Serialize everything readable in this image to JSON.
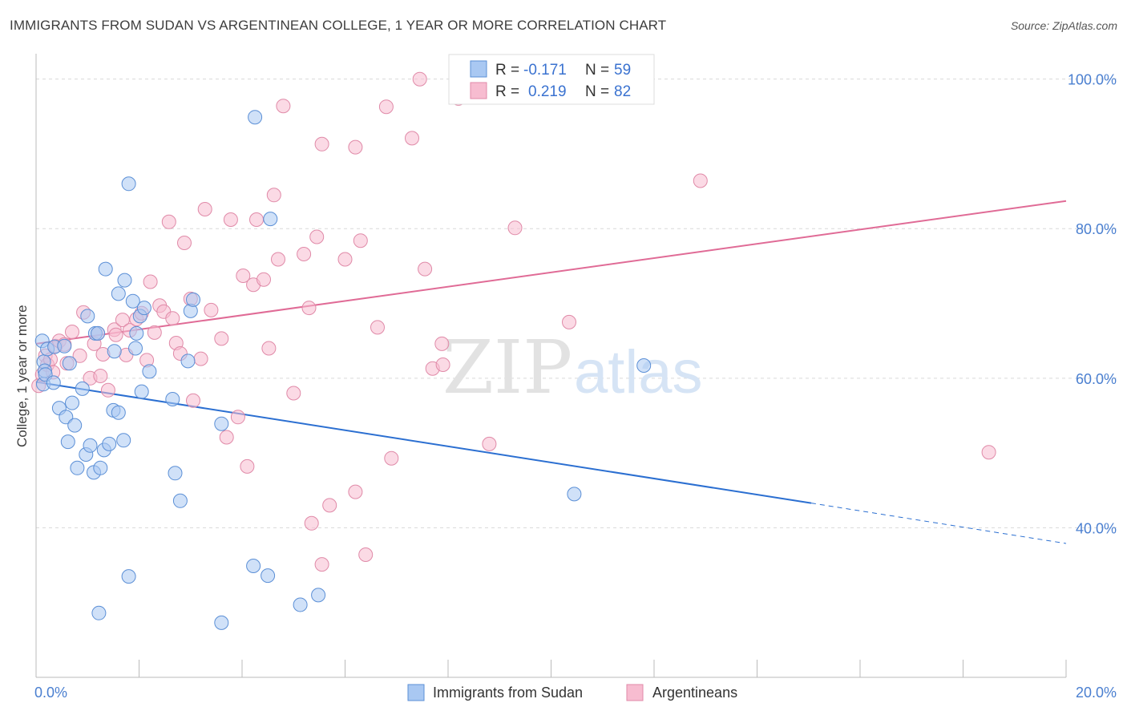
{
  "title": "IMMIGRANTS FROM SUDAN VS ARGENTINEAN COLLEGE, 1 YEAR OR MORE CORRELATION CHART",
  "source": "Source: ZipAtlas.com",
  "watermark": {
    "zip": "ZIP",
    "atlas": "atlas"
  },
  "colors": {
    "blue_fill": "#a9c8f2",
    "blue_stroke": "#5b8fd6",
    "blue_line": "#2b6fd1",
    "pink_fill": "#f7bcd0",
    "pink_stroke": "#e08aa8",
    "pink_line": "#e06b96",
    "tick_text": "#4a7fd0",
    "grid": "#d9d9d9"
  },
  "legend": {
    "r_label": "R =",
    "n_label": "N =",
    "rows": [
      {
        "r": "-0.171",
        "n": "59",
        "color": "blue"
      },
      {
        "r": "0.219",
        "n": "82",
        "color": "pink"
      }
    ]
  },
  "bottom_legend": [
    "Immigrants from Sudan",
    "Argentineans"
  ],
  "chart_data": {
    "type": "scatter",
    "title": "IMMIGRANTS FROM SUDAN VS ARGENTINEAN COLLEGE, 1 YEAR OR MORE CORRELATION CHART",
    "xlabel": "",
    "ylabel": "College, 1 year or more",
    "xlim": [
      0,
      20
    ],
    "ylim": [
      20,
      102
    ],
    "x_tick_labels": [
      "0.0%",
      "20.0%"
    ],
    "y_ticks": [
      40,
      60,
      80,
      100
    ],
    "y_tick_labels": [
      "40.0%",
      "60.0%",
      "80.0%",
      "100.0%"
    ],
    "grid": true,
    "series": [
      {
        "name": "Immigrants from Sudan",
        "color": "blue",
        "r": -0.171,
        "n": 59,
        "trend": {
          "x1": 0.0,
          "y1": 59.5,
          "x2": 15.05,
          "y2": 43.3,
          "dash_to_x": 20.0,
          "dash_to_y": 37.9
        },
        "points": [
          [
            0.12,
            65.0
          ],
          [
            0.15,
            62.2
          ],
          [
            0.17,
            61.0
          ],
          [
            0.14,
            59.2
          ],
          [
            0.18,
            60.5
          ],
          [
            0.22,
            63.9
          ],
          [
            0.36,
            64.2
          ],
          [
            0.34,
            59.4
          ],
          [
            0.55,
            64.3
          ],
          [
            0.65,
            62.0
          ],
          [
            0.45,
            56.0
          ],
          [
            0.7,
            56.7
          ],
          [
            0.58,
            54.8
          ],
          [
            0.75,
            53.7
          ],
          [
            0.62,
            51.5
          ],
          [
            0.9,
            58.6
          ],
          [
            0.8,
            48.0
          ],
          [
            0.97,
            49.8
          ],
          [
            1.05,
            51.0
          ],
          [
            1.12,
            47.4
          ],
          [
            1.25,
            48.0
          ],
          [
            1.32,
            50.4
          ],
          [
            1.42,
            51.2
          ],
          [
            1.5,
            55.7
          ],
          [
            1.6,
            55.4
          ],
          [
            1.7,
            51.7
          ],
          [
            1.0,
            68.3
          ],
          [
            1.15,
            66.0
          ],
          [
            1.2,
            66.0
          ],
          [
            1.35,
            74.6
          ],
          [
            1.52,
            63.6
          ],
          [
            1.6,
            71.3
          ],
          [
            1.72,
            73.1
          ],
          [
            1.8,
            86.0
          ],
          [
            1.88,
            70.3
          ],
          [
            1.93,
            64.0
          ],
          [
            1.95,
            66.0
          ],
          [
            2.02,
            68.3
          ],
          [
            2.1,
            69.4
          ],
          [
            2.05,
            58.2
          ],
          [
            2.2,
            60.9
          ],
          [
            2.65,
            57.2
          ],
          [
            2.7,
            47.3
          ],
          [
            2.8,
            43.6
          ],
          [
            2.95,
            62.3
          ],
          [
            3.0,
            69.0
          ],
          [
            3.05,
            70.5
          ],
          [
            3.6,
            53.9
          ],
          [
            1.8,
            33.5
          ],
          [
            1.22,
            28.6
          ],
          [
            3.6,
            27.3
          ],
          [
            4.25,
            94.9
          ],
          [
            4.55,
            81.3
          ],
          [
            4.22,
            34.9
          ],
          [
            4.5,
            33.6
          ],
          [
            5.13,
            29.7
          ],
          [
            5.48,
            31.0
          ],
          [
            10.45,
            44.5
          ],
          [
            11.8,
            61.7
          ]
        ]
      },
      {
        "name": "Argentineans",
        "color": "pink",
        "r": 0.219,
        "n": 82,
        "trend": {
          "x1": 0.0,
          "y1": 64.6,
          "x2": 20.0,
          "y2": 83.7
        },
        "points": [
          [
            0.05,
            59.0
          ],
          [
            0.12,
            60.5
          ],
          [
            0.18,
            63.0
          ],
          [
            0.22,
            61.8
          ],
          [
            0.28,
            62.5
          ],
          [
            0.33,
            60.8
          ],
          [
            0.38,
            64.3
          ],
          [
            0.45,
            65.0
          ],
          [
            0.55,
            64.5
          ],
          [
            0.6,
            62.0
          ],
          [
            0.7,
            66.2
          ],
          [
            0.85,
            63.0
          ],
          [
            0.92,
            68.8
          ],
          [
            1.05,
            60.0
          ],
          [
            1.13,
            64.6
          ],
          [
            1.2,
            66.0
          ],
          [
            1.25,
            60.3
          ],
          [
            1.3,
            63.2
          ],
          [
            1.4,
            58.4
          ],
          [
            1.52,
            66.5
          ],
          [
            1.55,
            65.8
          ],
          [
            1.68,
            67.8
          ],
          [
            1.75,
            63.1
          ],
          [
            1.82,
            66.4
          ],
          [
            1.95,
            67.9
          ],
          [
            2.05,
            68.7
          ],
          [
            2.15,
            62.4
          ],
          [
            2.22,
            72.9
          ],
          [
            2.3,
            66.1
          ],
          [
            2.4,
            69.7
          ],
          [
            2.48,
            68.9
          ],
          [
            2.58,
            80.9
          ],
          [
            2.65,
            68.0
          ],
          [
            2.72,
            64.7
          ],
          [
            2.8,
            63.3
          ],
          [
            2.88,
            78.1
          ],
          [
            3.0,
            70.6
          ],
          [
            3.05,
            57.0
          ],
          [
            3.2,
            62.6
          ],
          [
            3.28,
            82.6
          ],
          [
            3.4,
            69.1
          ],
          [
            3.6,
            65.3
          ],
          [
            3.7,
            52.1
          ],
          [
            3.78,
            81.2
          ],
          [
            3.92,
            54.8
          ],
          [
            4.02,
            73.7
          ],
          [
            4.1,
            48.2
          ],
          [
            4.22,
            72.5
          ],
          [
            4.28,
            81.2
          ],
          [
            4.42,
            73.2
          ],
          [
            4.52,
            64.0
          ],
          [
            4.62,
            84.5
          ],
          [
            4.7,
            75.9
          ],
          [
            4.8,
            96.4
          ],
          [
            5.0,
            58.0
          ],
          [
            5.2,
            76.6
          ],
          [
            5.3,
            69.4
          ],
          [
            5.45,
            78.9
          ],
          [
            5.55,
            91.3
          ],
          [
            5.7,
            43.0
          ],
          [
            5.55,
            35.1
          ],
          [
            5.35,
            40.6
          ],
          [
            6.0,
            75.9
          ],
          [
            6.2,
            90.9
          ],
          [
            6.3,
            78.4
          ],
          [
            6.2,
            44.8
          ],
          [
            6.4,
            36.4
          ],
          [
            6.63,
            66.8
          ],
          [
            6.8,
            96.3
          ],
          [
            6.9,
            49.3
          ],
          [
            7.3,
            92.1
          ],
          [
            7.45,
            100.0
          ],
          [
            7.55,
            74.6
          ],
          [
            7.7,
            61.3
          ],
          [
            7.88,
            64.6
          ],
          [
            7.9,
            61.8
          ],
          [
            8.2,
            97.4
          ],
          [
            8.8,
            51.2
          ],
          [
            9.3,
            80.1
          ],
          [
            10.35,
            67.5
          ],
          [
            12.9,
            86.4
          ],
          [
            18.5,
            50.1
          ]
        ]
      }
    ]
  }
}
